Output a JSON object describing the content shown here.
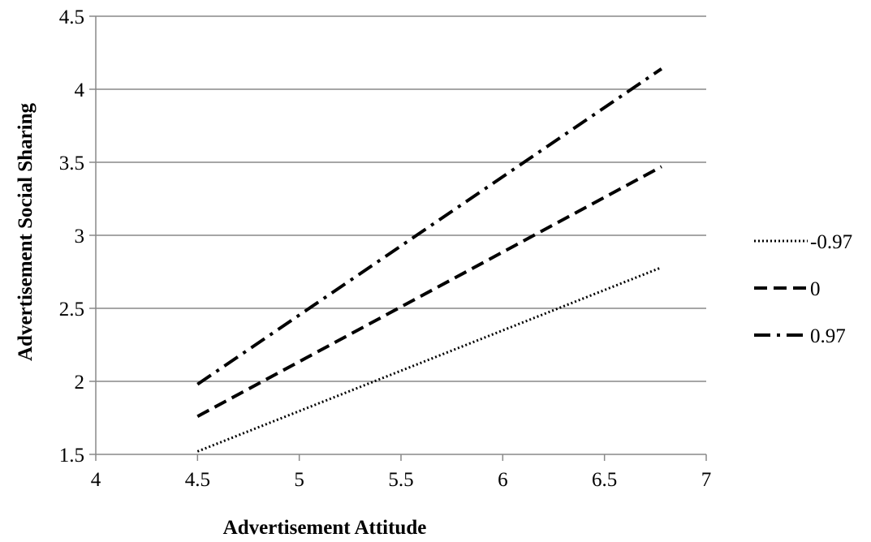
{
  "chart_data": {
    "type": "line",
    "title": "",
    "xlabel": "Advertisement Attitude",
    "ylabel": "Advertisement Social Sharing",
    "xlim": [
      4,
      7
    ],
    "ylim": [
      1.5,
      4.5
    ],
    "x_ticks": [
      "4",
      "4.5",
      "5",
      "5.5",
      "6",
      "6.5",
      "7"
    ],
    "y_ticks": [
      "1.5",
      "2",
      "2.5",
      "3",
      "3.5",
      "4",
      "4.5"
    ],
    "grid": "horizontal",
    "legend_position": "right",
    "series": [
      {
        "name": "-0.97",
        "style": "dotted",
        "x": [
          4.5,
          6.78
        ],
        "y": [
          1.52,
          2.78
        ]
      },
      {
        "name": "0",
        "style": "dashed",
        "x": [
          4.5,
          6.78
        ],
        "y": [
          1.76,
          3.47
        ]
      },
      {
        "name": "0.97",
        "style": "dash-dot",
        "x": [
          4.5,
          6.78
        ],
        "y": [
          1.98,
          4.14
        ]
      }
    ],
    "colors": {
      "line": "#000000",
      "grid": "#898989",
      "background": "#ffffff"
    }
  }
}
